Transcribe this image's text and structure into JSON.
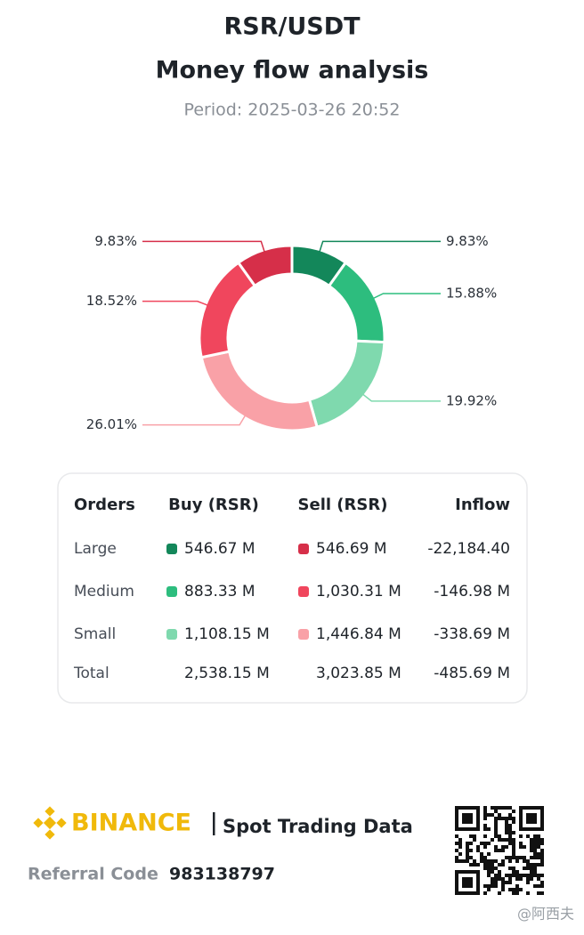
{
  "header": {
    "title": "RSR/USDT",
    "subtitle": "Money flow analysis",
    "period": "Period: 2025-03-26 20:52"
  },
  "chart_data": {
    "type": "pie",
    "values": [
      9.83,
      15.88,
      19.92,
      26.01,
      18.52,
      9.83
    ],
    "value_labels": [
      "9.83%",
      "15.88%",
      "19.92%",
      "26.01%",
      "18.52%",
      "9.83%"
    ],
    "colors": [
      "#13875a",
      "#2dbd7e",
      "#7fd9ae",
      "#f9a1a7",
      "#f0465d",
      "#d62f49"
    ]
  },
  "table": {
    "columns": [
      "Orders",
      "Buy (RSR)",
      "Sell (RSR)",
      "Inflow"
    ],
    "rows": [
      [
        "Large",
        "546.67 M",
        "546.69 M",
        "-22,184.40"
      ],
      [
        "Medium",
        "883.33 M",
        "1,030.31 M",
        "-146.98 M"
      ],
      [
        "Small",
        "1,108.15 M",
        "1,446.84 M",
        "-338.69 M"
      ],
      [
        "Total",
        "2,538.15 M",
        "3,023.85 M",
        "-485.69 M"
      ]
    ]
  },
  "footer": {
    "brand": "BINANCE",
    "tagline": "Spot Trading Data",
    "referral_label": "Referral Code",
    "referral_code": "983138797",
    "watermark": "@阿西夫"
  }
}
